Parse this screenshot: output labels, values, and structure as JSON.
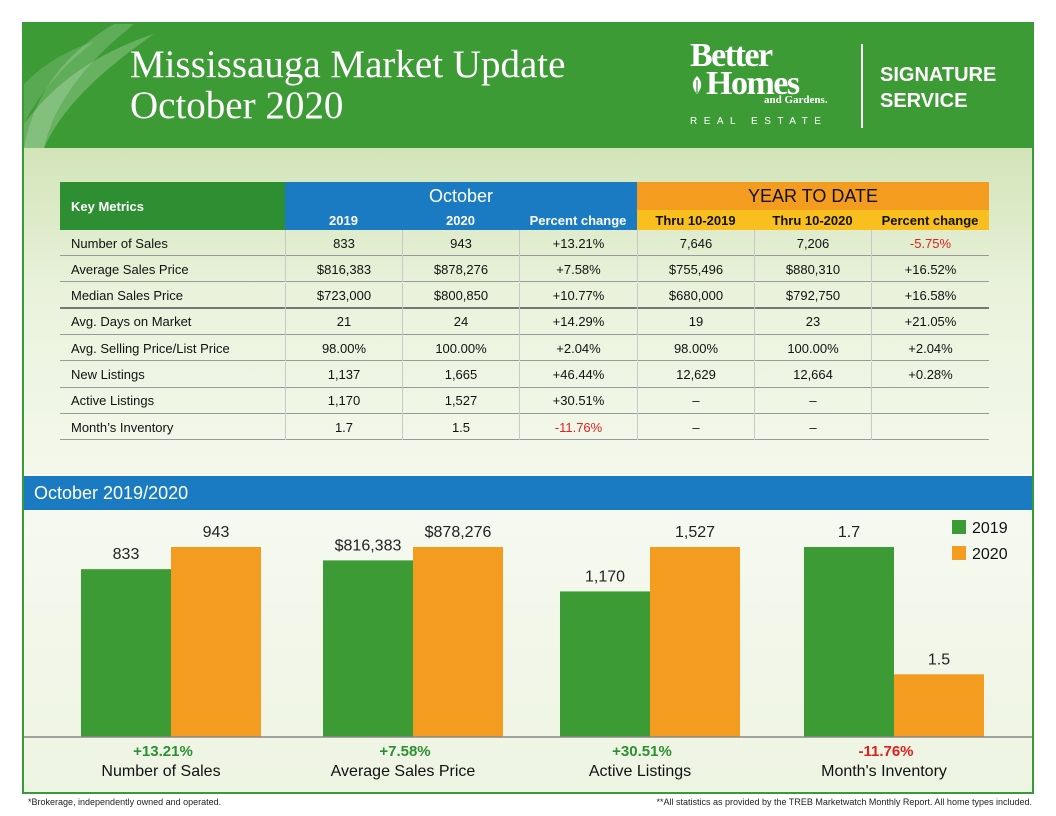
{
  "header": {
    "title_line1": "Mississauga Market Update",
    "title_line2": "October 2020",
    "brand_line1": "Better",
    "brand_line2": "Homes",
    "brand_gardens": "and Gardens.",
    "brand_real_estate": "REAL ESTATE",
    "signature_line1": "SIGNATURE",
    "signature_line2": "SERVICE"
  },
  "colors": {
    "green": "#3d9b35",
    "dark_green": "#2e8f32",
    "blue": "#1b7bc2",
    "orange": "#f39c1f",
    "negative_red": "#e02020",
    "positive_green": "#2e8f32"
  },
  "table": {
    "key_metrics_label": "Key Metrics",
    "october_label": "October",
    "ytd_label": "YEAR TO DATE",
    "subheaders": [
      "2019",
      "2020",
      "Percent change",
      "Thru 10-2019",
      "Thru 10-2020",
      "Percent change"
    ],
    "rows": [
      {
        "metric": "Number of Sales",
        "v": [
          "833",
          "943",
          "+13.21%",
          "7,646",
          "7,206",
          "-5.75%"
        ],
        "neg": [
          false,
          false,
          false,
          false,
          false,
          true
        ]
      },
      {
        "metric": "Average Sales Price",
        "v": [
          "$816,383",
          "$878,276",
          "+7.58%",
          "$755,496",
          "$880,310",
          "+16.52%"
        ],
        "neg": [
          false,
          false,
          false,
          false,
          false,
          false
        ]
      },
      {
        "metric": "Median Sales Price",
        "v": [
          "$723,000",
          "$800,850",
          "+10.77%",
          "$680,000",
          "$792,750",
          "+16.58%"
        ],
        "neg": [
          false,
          false,
          false,
          false,
          false,
          false
        ]
      },
      {
        "metric": "Avg. Days on Market",
        "v": [
          "21",
          "24",
          "+14.29%",
          "19",
          "23",
          "+21.05%"
        ],
        "neg": [
          false,
          false,
          false,
          false,
          false,
          false
        ]
      },
      {
        "metric": "Avg. Selling Price/List Price",
        "v": [
          "98.00%",
          "100.00%",
          "+2.04%",
          "98.00%",
          "100.00%",
          "+2.04%"
        ],
        "neg": [
          false,
          false,
          false,
          false,
          false,
          false
        ]
      },
      {
        "metric": "New Listings",
        "v": [
          "1,137",
          "1,665",
          "+46.44%",
          "12,629",
          "12,664",
          "+0.28%"
        ],
        "neg": [
          false,
          false,
          false,
          false,
          false,
          false
        ]
      },
      {
        "metric": "Active Listings",
        "v": [
          "1,170",
          "1,527",
          "+30.51%",
          "–",
          "–",
          ""
        ],
        "neg": [
          false,
          false,
          false,
          false,
          false,
          false
        ]
      },
      {
        "metric": "Month’s Inventory",
        "v": [
          "1.7",
          "1.5",
          "-11.76%",
          "–",
          "–",
          ""
        ],
        "neg": [
          false,
          false,
          true,
          false,
          false,
          false
        ]
      }
    ]
  },
  "chart_section_title": "October 2019/2020",
  "chart_data": {
    "type": "bar",
    "categories": [
      "Number of Sales",
      "Average Sales Price",
      "Active Listings",
      "Month's Inventory"
    ],
    "series": [
      {
        "name": "2019",
        "values": [
          833,
          816383,
          1170,
          1.7
        ],
        "labels": [
          "833",
          "$816,383",
          "1,170",
          "1.7"
        ],
        "color": "#3d9b35"
      },
      {
        "name": "2020",
        "values": [
          943,
          878276,
          1527,
          1.5
        ],
        "labels": [
          "943",
          "$878,276",
          "1,527",
          "1.5"
        ],
        "color": "#f39c1f"
      }
    ],
    "change_labels": [
      "+13.21%",
      "+7.58%",
      "+30.51%",
      "-11.76%"
    ],
    "change_negative": [
      false,
      false,
      false,
      true
    ],
    "legend": "top-right",
    "scale": "each category scaled independently"
  },
  "footer": {
    "left": "*Brokerage, independently owned and operated.",
    "right": "**All statistics as provided by the TREB Marketwatch Monthly Report. All home types included."
  }
}
